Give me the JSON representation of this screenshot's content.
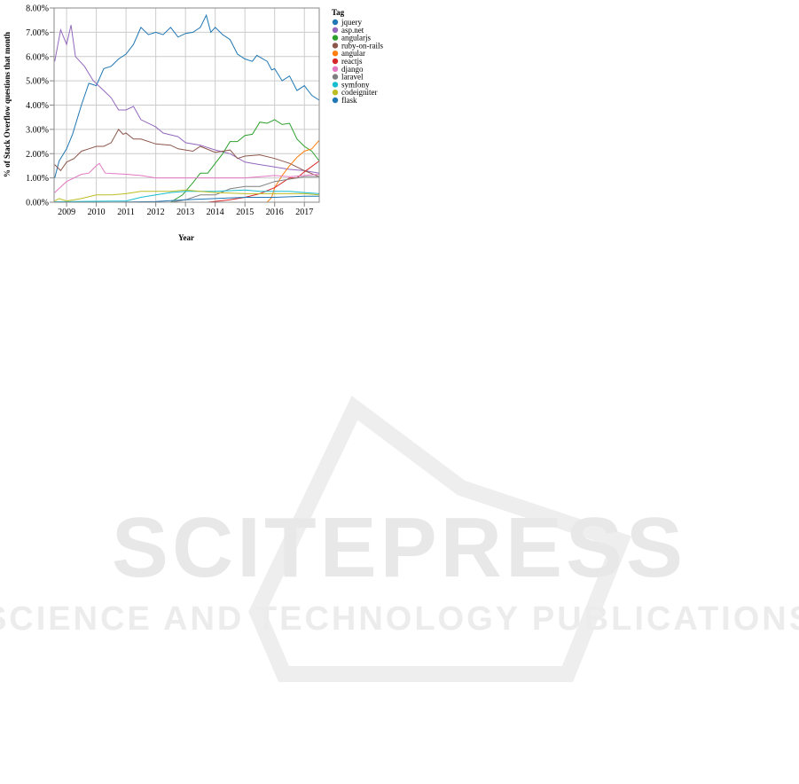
{
  "chart_data": {
    "type": "line",
    "title": "",
    "xlabel": "Year",
    "ylabel": "% of Stack Overflow questions that month",
    "xlim": [
      2008.58,
      2017.5
    ],
    "ylim": [
      0,
      8
    ],
    "x_ticks": [
      "2009",
      "2010",
      "2011",
      "2012",
      "2013",
      "2014",
      "2015",
      "2016",
      "2017"
    ],
    "y_ticks": [
      "0.00%",
      "1.00%",
      "2.00%",
      "3.00%",
      "4.00%",
      "5.00%",
      "6.00%",
      "7.00%",
      "8.00%"
    ],
    "grid": true,
    "legend_title": "Tag",
    "legend_placement": "right",
    "series": [
      {
        "name": "jquery",
        "color": "#1f77b4",
        "x": [
          2008.6,
          2008.75,
          2009.0,
          2009.2,
          2009.5,
          2009.75,
          2010.0,
          2010.25,
          2010.5,
          2010.75,
          2011.0,
          2011.25,
          2011.5,
          2011.75,
          2012.0,
          2012.25,
          2012.5,
          2012.75,
          2013.0,
          2013.25,
          2013.5,
          2013.7,
          2013.85,
          2014.0,
          2014.25,
          2014.5,
          2014.75,
          2015.0,
          2015.25,
          2015.4,
          2015.75,
          2015.9,
          2016.0,
          2016.25,
          2016.5,
          2016.75,
          2017.0,
          2017.25,
          2017.5
        ],
        "y": [
          1.0,
          1.7,
          2.2,
          2.8,
          4.0,
          4.9,
          4.8,
          5.5,
          5.6,
          5.9,
          6.1,
          6.5,
          7.2,
          6.9,
          7.0,
          6.9,
          7.2,
          6.8,
          6.95,
          7.0,
          7.2,
          7.7,
          7.0,
          7.2,
          6.9,
          6.7,
          6.1,
          5.9,
          5.8,
          6.05,
          5.8,
          5.45,
          5.5,
          5.0,
          5.2,
          4.6,
          4.8,
          4.4,
          4.2
        ]
      },
      {
        "name": "asp.net",
        "color": "#9467bd",
        "x": [
          2008.6,
          2008.8,
          2009.0,
          2009.15,
          2009.3,
          2009.6,
          2009.9,
          2010.25,
          2010.5,
          2010.75,
          2011.0,
          2011.25,
          2011.5,
          2012.0,
          2012.25,
          2012.75,
          2013.0,
          2013.5,
          2014.0,
          2014.5,
          2015.0,
          2015.5,
          2016.0,
          2016.5,
          2017.0,
          2017.5
        ],
        "y": [
          5.8,
          7.1,
          6.5,
          7.3,
          6.0,
          5.6,
          5.0,
          4.6,
          4.3,
          3.8,
          3.8,
          3.95,
          3.4,
          3.1,
          2.85,
          2.7,
          2.45,
          2.35,
          2.15,
          2.0,
          1.65,
          1.55,
          1.45,
          1.35,
          1.3,
          1.2
        ]
      },
      {
        "name": "angularjs",
        "color": "#2ca02c",
        "x": [
          2008.6,
          2012.5,
          2012.9,
          2013.25,
          2013.5,
          2013.75,
          2014.0,
          2014.25,
          2014.5,
          2014.75,
          2015.0,
          2015.25,
          2015.5,
          2015.75,
          2016.0,
          2016.25,
          2016.5,
          2016.75,
          2017.0,
          2017.25,
          2017.5
        ],
        "y": [
          0,
          0,
          0.3,
          0.8,
          1.2,
          1.2,
          1.6,
          2.0,
          2.5,
          2.5,
          2.75,
          2.8,
          3.3,
          3.25,
          3.4,
          3.2,
          3.25,
          2.6,
          2.3,
          2.1,
          1.7
        ]
      },
      {
        "name": "ruby-on-rails",
        "color": "#8c564b",
        "x": [
          2008.6,
          2008.8,
          2009.0,
          2009.25,
          2009.5,
          2009.75,
          2010.0,
          2010.25,
          2010.5,
          2010.75,
          2010.9,
          2011.0,
          2011.25,
          2011.5,
          2012.0,
          2012.5,
          2012.75,
          2013.25,
          2013.5,
          2014.0,
          2014.5,
          2014.75,
          2015.0,
          2015.5,
          2016.0,
          2016.5,
          2017.0,
          2017.5
        ],
        "y": [
          1.55,
          1.3,
          1.65,
          1.8,
          2.1,
          2.2,
          2.3,
          2.3,
          2.45,
          3.0,
          2.8,
          2.85,
          2.6,
          2.6,
          2.4,
          2.35,
          2.2,
          2.1,
          2.3,
          2.05,
          2.15,
          1.8,
          1.9,
          1.95,
          1.8,
          1.6,
          1.3,
          1.05
        ]
      },
      {
        "name": "angular",
        "color": "#ff7f0e",
        "x": [
          2008.6,
          2015.75,
          2015.9,
          2016.0,
          2016.25,
          2016.5,
          2016.75,
          2017.0,
          2017.25,
          2017.5
        ],
        "y": [
          0,
          0,
          0.2,
          0.6,
          1.1,
          1.5,
          1.85,
          2.1,
          2.2,
          2.55
        ]
      },
      {
        "name": "reactjs",
        "color": "#d62728",
        "x": [
          2008.6,
          2013.75,
          2014.5,
          2015.0,
          2015.5,
          2016.0,
          2016.5,
          2016.75,
          2017.0,
          2017.5
        ],
        "y": [
          0,
          0,
          0.1,
          0.2,
          0.35,
          0.6,
          1.0,
          1.0,
          1.25,
          1.7
        ]
      },
      {
        "name": "django",
        "color": "#e377c2",
        "x": [
          2008.6,
          2009.0,
          2009.5,
          2009.75,
          2010.0,
          2010.1,
          2010.3,
          2011.0,
          2011.5,
          2012.0,
          2013.0,
          2014.0,
          2015.0,
          2015.5,
          2016.0,
          2016.5,
          2017.0,
          2017.5
        ],
        "y": [
          0.4,
          0.85,
          1.15,
          1.2,
          1.5,
          1.6,
          1.2,
          1.15,
          1.1,
          1.0,
          1.0,
          1.0,
          1.0,
          1.05,
          1.1,
          1.05,
          1.1,
          1.15
        ]
      },
      {
        "name": "laravel",
        "color": "#7f7f7f",
        "x": [
          2008.6,
          2012.5,
          2013.0,
          2013.5,
          2014.0,
          2014.5,
          2015.0,
          2015.5,
          2016.0,
          2016.5,
          2017.0,
          2017.5
        ],
        "y": [
          0,
          0,
          0.1,
          0.3,
          0.3,
          0.55,
          0.65,
          0.65,
          0.85,
          0.95,
          1.05,
          1.05
        ]
      },
      {
        "name": "symfony",
        "color": "#17becf",
        "x": [
          2008.6,
          2011.0,
          2011.5,
          2012.0,
          2012.5,
          2013.0,
          2014.0,
          2015.0,
          2015.5,
          2016.0,
          2016.5,
          2017.0,
          2017.5
        ],
        "y": [
          0.02,
          0.05,
          0.2,
          0.3,
          0.4,
          0.45,
          0.45,
          0.5,
          0.45,
          0.45,
          0.45,
          0.4,
          0.35
        ]
      },
      {
        "name": "codeigniter",
        "color": "#bcbd22",
        "x": [
          2008.6,
          2008.75,
          2009.0,
          2009.5,
          2010.0,
          2010.5,
          2011.0,
          2011.5,
          2012.0,
          2012.5,
          2013.0,
          2013.5,
          2014.0,
          2015.0,
          2016.0,
          2017.0,
          2017.5
        ],
        "y": [
          0.05,
          0.15,
          0.05,
          0.15,
          0.3,
          0.3,
          0.35,
          0.45,
          0.45,
          0.45,
          0.5,
          0.45,
          0.4,
          0.35,
          0.35,
          0.35,
          0.3
        ]
      },
      {
        "name": "flask",
        "color": "#1f77b4",
        "x": [
          2008.6,
          2010.5,
          2012.0,
          2013.0,
          2014.0,
          2015.0,
          2016.0,
          2017.0,
          2017.5
        ],
        "y": [
          0,
          0,
          0.03,
          0.1,
          0.15,
          0.2,
          0.2,
          0.25,
          0.25
        ]
      }
    ]
  },
  "watermark": {
    "line1": "SCITEPRESS",
    "line2": "SCIENCE AND TECHNOLOGY PUBLICATIONS"
  }
}
